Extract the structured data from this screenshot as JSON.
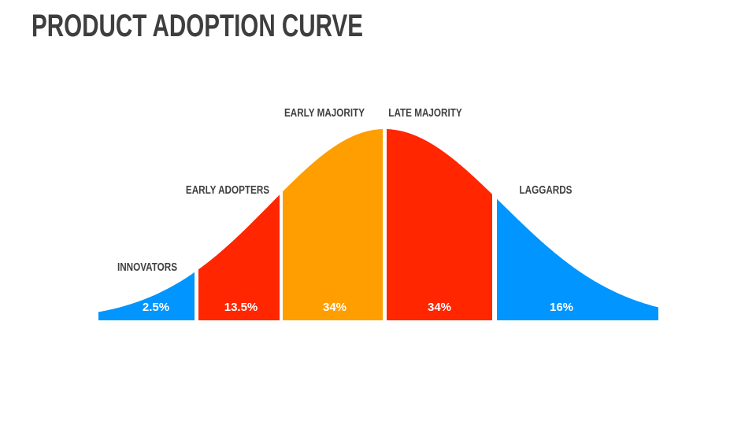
{
  "slide": {
    "title": "PRODUCT ADOPTION CURVE"
  },
  "chart_data": {
    "type": "area",
    "title": "Product Adoption Curve",
    "description_shape": "bell-curve split into 5 colored segments with white gaps",
    "segments": [
      {
        "label": "INNOVATORS",
        "value": 2.5,
        "value_label": "2.5%",
        "color": "#0095FF"
      },
      {
        "label": "EARLY ADOPTERS",
        "value": 13.5,
        "value_label": "13.5%",
        "color": "#FF2600"
      },
      {
        "label": "EARLY MAJORITY",
        "value": 34,
        "value_label": "34%",
        "color": "#FF9E00"
      },
      {
        "label": "LATE MAJORITY",
        "value": 34,
        "value_label": "34%",
        "color": "#FF2600"
      },
      {
        "label": "LAGGARDS",
        "value": 16,
        "value_label": "16%",
        "color": "#0095FF"
      }
    ],
    "colors": {
      "title_text": "#3E3E3E",
      "label_text": "#404040",
      "value_text": "#FFFFFF",
      "background": "#FFFFFF"
    },
    "legend": "none",
    "grid": false,
    "axes": "none"
  }
}
